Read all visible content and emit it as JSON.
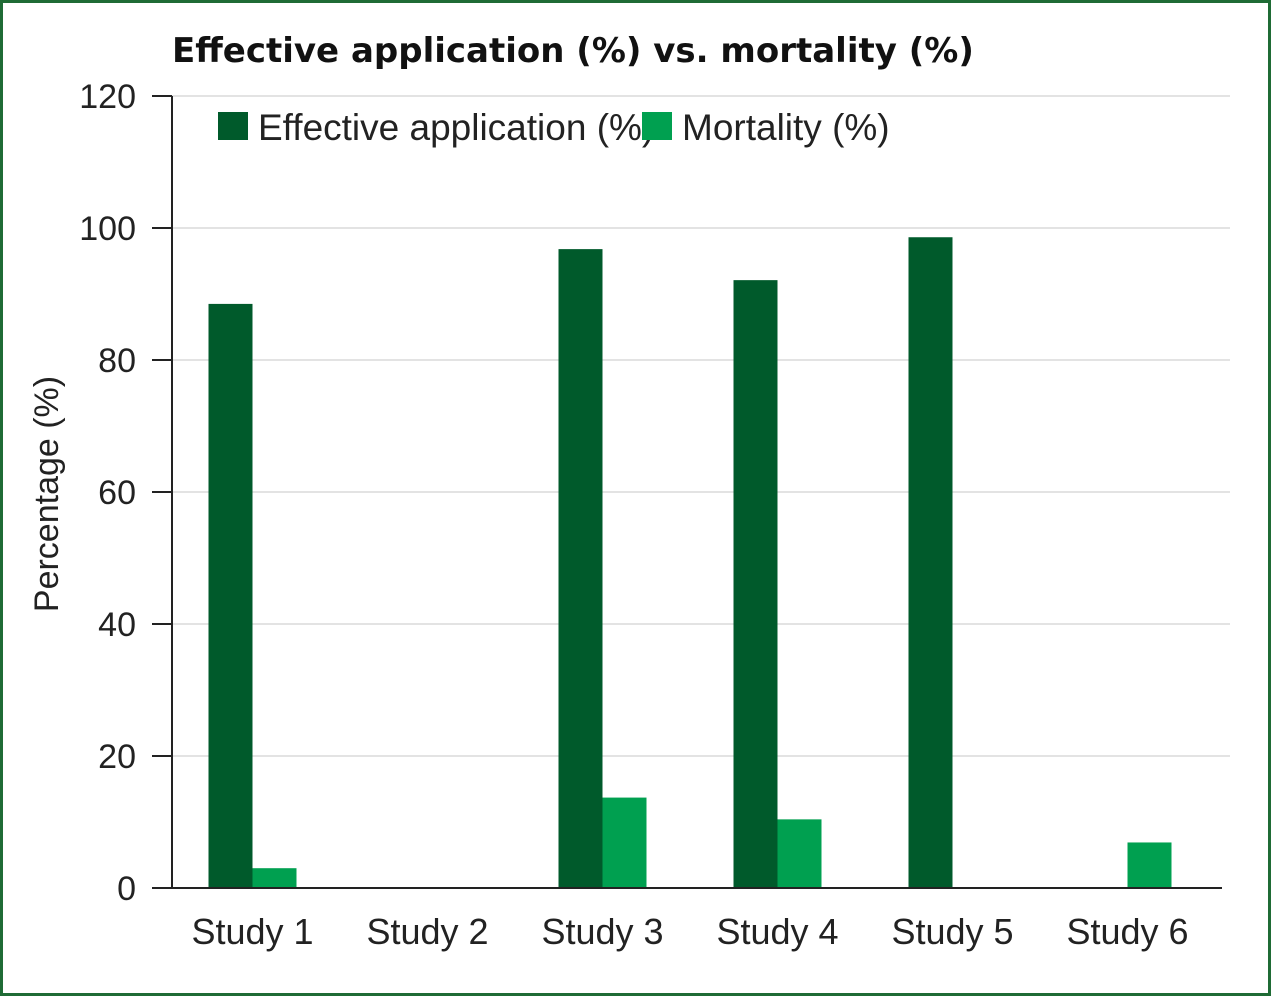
{
  "chart_data": {
    "type": "bar",
    "title": "Effective application (%) vs. mortality (%)",
    "xlabel": "",
    "ylabel": "Percentage (%)",
    "ylim": [
      0,
      120
    ],
    "yticks": [
      0,
      20,
      40,
      60,
      80,
      100,
      120
    ],
    "categories": [
      "Study 1",
      "Study 2",
      "Study 3",
      "Study 4",
      "Study 5",
      "Study 6"
    ],
    "series": [
      {
        "name": "Effective application (%)",
        "color": "#005a2b",
        "values": [
          88.5,
          null,
          96.8,
          92.1,
          98.6,
          null
        ]
      },
      {
        "name": "Mortality (%)",
        "color": "#00a050",
        "values": [
          3.0,
          null,
          13.7,
          10.4,
          null,
          6.9
        ]
      }
    ],
    "grid": true,
    "legend": "top-left"
  }
}
